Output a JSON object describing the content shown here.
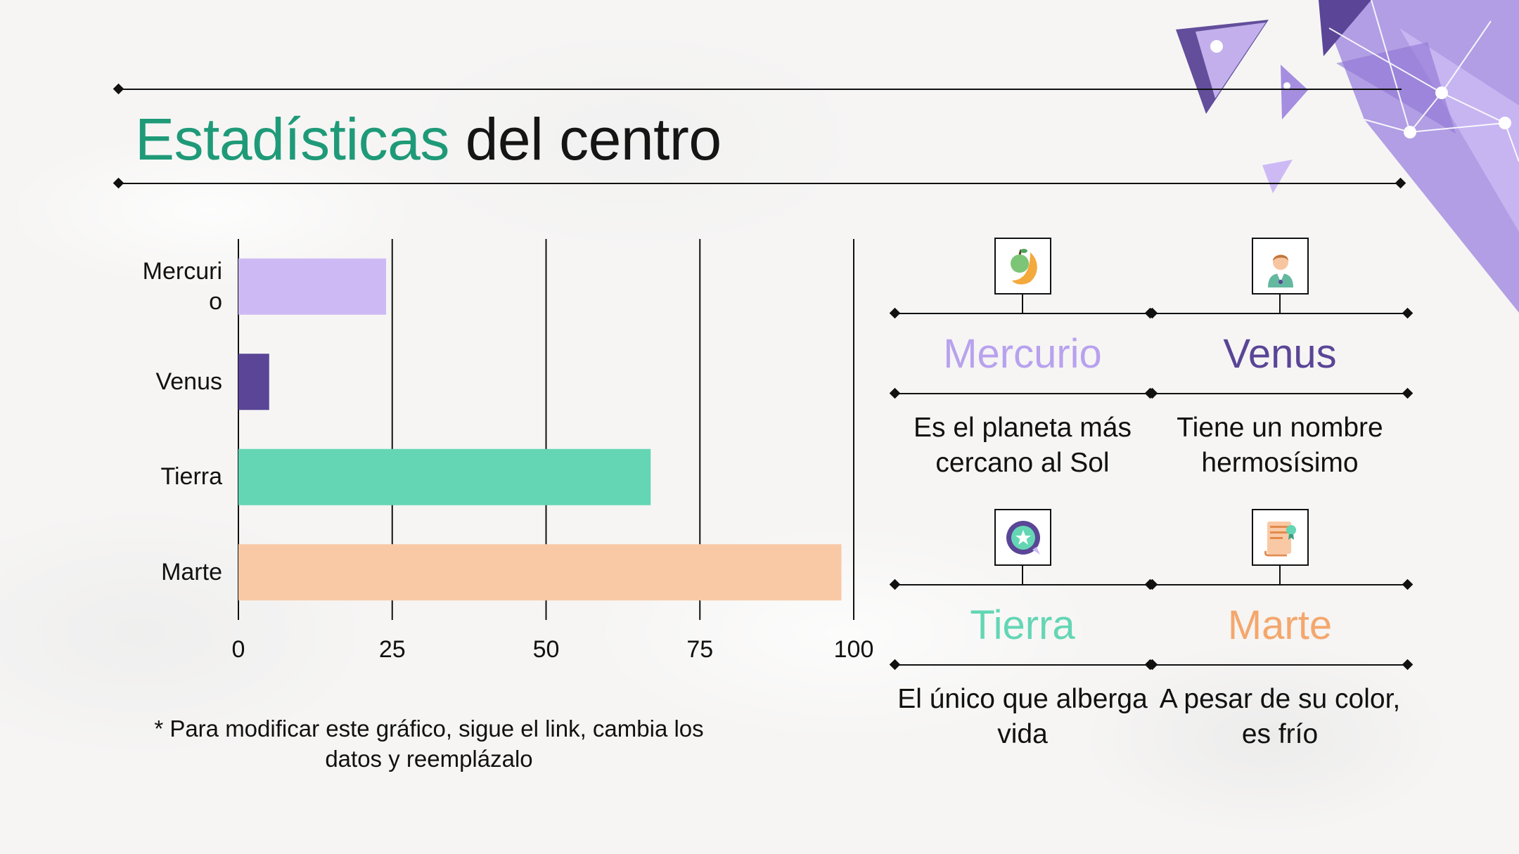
{
  "slide": {
    "title_accent": "Estadísticas",
    "title_rest": "del centro",
    "note": "* Para modificar este gráfico, sigue el link, cambia los datos y reemplázalo"
  },
  "colors": {
    "title_accent": "#1f9a78",
    "mercurio": "#cdbaf5",
    "venus": "#5a4596",
    "tierra": "#64d6b4",
    "marte": "#f9c9a5",
    "decoration": "#a58ee0"
  },
  "chart_data": {
    "type": "bar",
    "orientation": "horizontal",
    "categories": [
      "Mercuri\no",
      "Venus",
      "Tierra",
      "Marte"
    ],
    "values": [
      24,
      5,
      67,
      98
    ],
    "bar_colors": [
      "#cdbaf5",
      "#5a4596",
      "#64d6b4",
      "#f9c9a5"
    ],
    "xlim": [
      0,
      100
    ],
    "xticks": [
      "0",
      "25",
      "50",
      "75",
      "100"
    ],
    "grid": true,
    "title": "",
    "xlabel": "",
    "ylabel": ""
  },
  "panels": [
    {
      "name": "Mercurio",
      "desc": "Es el planeta más cercano al Sol",
      "color": "#b8a2ee",
      "icon": "fruit-icon"
    },
    {
      "name": "Venus",
      "desc": "Tiene un nombre hermosísimo",
      "color": "#5a4596",
      "icon": "person-icon"
    },
    {
      "name": "Tierra",
      "desc": "El único que alberga vida",
      "color": "#64d6b4",
      "icon": "badge-sticker-icon"
    },
    {
      "name": "Marte",
      "desc": "A pesar de su color, es frío",
      "color": "#f4a76d",
      "icon": "certificate-scroll-icon"
    }
  ]
}
